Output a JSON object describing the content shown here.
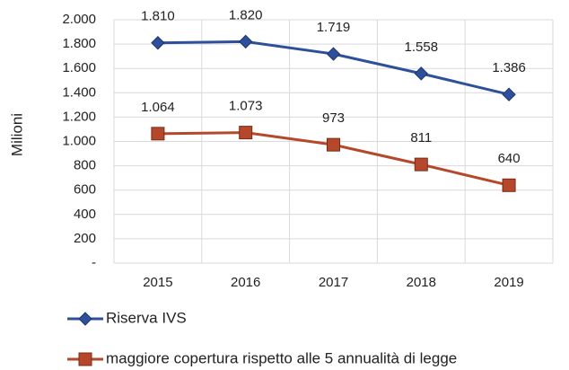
{
  "chart_data": {
    "type": "line",
    "y_label": "Milioni",
    "categories": [
      "2015",
      "2016",
      "2017",
      "2018",
      "2019"
    ],
    "series": [
      {
        "name": "Riserva IVS",
        "color": "#2e4f9a",
        "marker": "diamond",
        "values": [
          1810,
          1820,
          1719,
          1558,
          1386
        ],
        "value_labels": [
          "1.810",
          "1.820",
          "1.719",
          "1.558",
          "1.386"
        ]
      },
      {
        "name": "maggiore copertura rispetto alle 5 annualità di legge",
        "color": "#b5482a",
        "marker": "square",
        "values": [
          1064,
          1073,
          973,
          811,
          640
        ],
        "value_labels": [
          "1.064",
          "1.073",
          "973",
          "811",
          "640"
        ]
      }
    ],
    "ylim": [
      0,
      2000
    ],
    "yticks": [
      {
        "value": 0,
        "label": "-"
      },
      200,
      400,
      600,
      800,
      {
        "value": 1000,
        "label": "1.000"
      },
      {
        "value": 1200,
        "label": "1.200"
      },
      {
        "value": 1400,
        "label": "1.400"
      },
      {
        "value": 1600,
        "label": "1.600"
      },
      {
        "value": 1800,
        "label": "1.800"
      },
      {
        "value": 2000,
        "label": "2.000"
      }
    ],
    "grid": true
  }
}
